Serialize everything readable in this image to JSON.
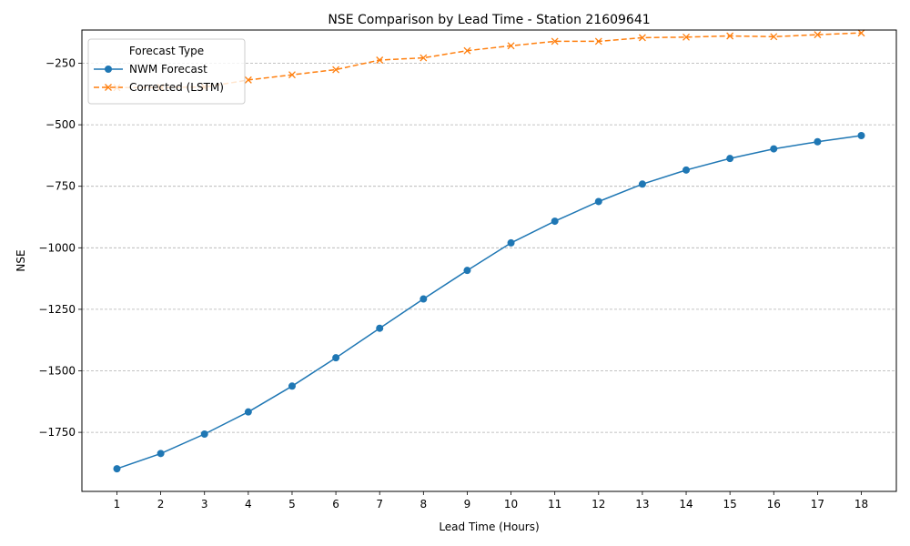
{
  "chart_data": {
    "type": "line",
    "title": "NSE Comparison by Lead Time - Station 21609641",
    "xlabel": "Lead Time (Hours)",
    "ylabel": "NSE",
    "x": [
      1,
      2,
      3,
      4,
      5,
      6,
      7,
      8,
      9,
      10,
      11,
      12,
      13,
      14,
      15,
      16,
      17,
      18
    ],
    "xticks": [
      "1",
      "2",
      "3",
      "4",
      "5",
      "6",
      "7",
      "8",
      "9",
      "10",
      "11",
      "12",
      "13",
      "14",
      "15",
      "16",
      "17",
      "18"
    ],
    "xlim": [
      0.2,
      18.8
    ],
    "ylim": [
      -1990,
      -115
    ],
    "yticks": [
      -1750,
      -1500,
      -1250,
      -1000,
      -750,
      -500,
      -250
    ],
    "ytick_labels": [
      "−1750",
      "−1500",
      "−1250",
      "−1000",
      "−750",
      "−500",
      "−250"
    ],
    "grid": "horizontal dashed",
    "legend": {
      "title": "Forecast Type",
      "placement": "top-left"
    },
    "series": [
      {
        "name": "NWM Forecast",
        "color": "#1f77b4",
        "marker": "circle",
        "linestyle": "solid",
        "values": [
          -1898,
          -1836,
          -1757,
          -1667,
          -1562,
          -1447,
          -1327,
          -1208,
          -1092,
          -980,
          -892,
          -812,
          -741,
          -684,
          -637,
          -598,
          -569,
          -544
        ]
      },
      {
        "name": "Corrected (LSTM)",
        "color": "#ff7f0e",
        "marker": "x",
        "linestyle": "dashed",
        "values": [
          -349,
          -348,
          -347,
          -318,
          -297,
          -276,
          -237,
          -228,
          -199,
          -179,
          -161,
          -161,
          -146,
          -144,
          -139,
          -142,
          -134,
          -127
        ]
      }
    ]
  }
}
